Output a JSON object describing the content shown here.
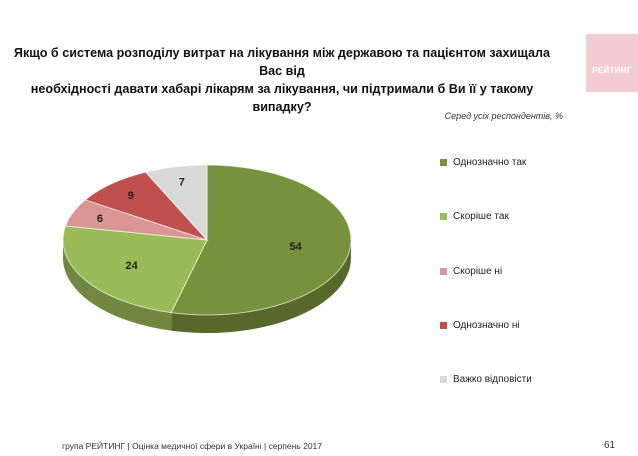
{
  "title_line1": "Якщо б система розподілу витрат на лікування між державою та пацієнтом захищала Вас від",
  "title_line2": "необхідності давати хабарі лікарям за лікування, чи підтримали б Ви її у такому випадку?",
  "logo_text": "РЕЙТИНГ",
  "footer": "група РЕЙТИНГ  |  Оцінка медичної сфери в Україні  |  серпень 2017",
  "page_number": "61",
  "chart_data": {
    "type": "pie",
    "title": "",
    "subtitle": "Серед усіх респондентів, %",
    "categories": [
      "Однозначно так",
      "Скоріше так",
      "Скоріше ні",
      "Однозначно ні",
      "Важко відповісти"
    ],
    "values": [
      54,
      24,
      6,
      9,
      7
    ],
    "colors": [
      "#77923c",
      "#9bbb59",
      "#d99694",
      "#c0504d",
      "#d9d9d9"
    ],
    "legend_position": "right",
    "three_d": true
  }
}
